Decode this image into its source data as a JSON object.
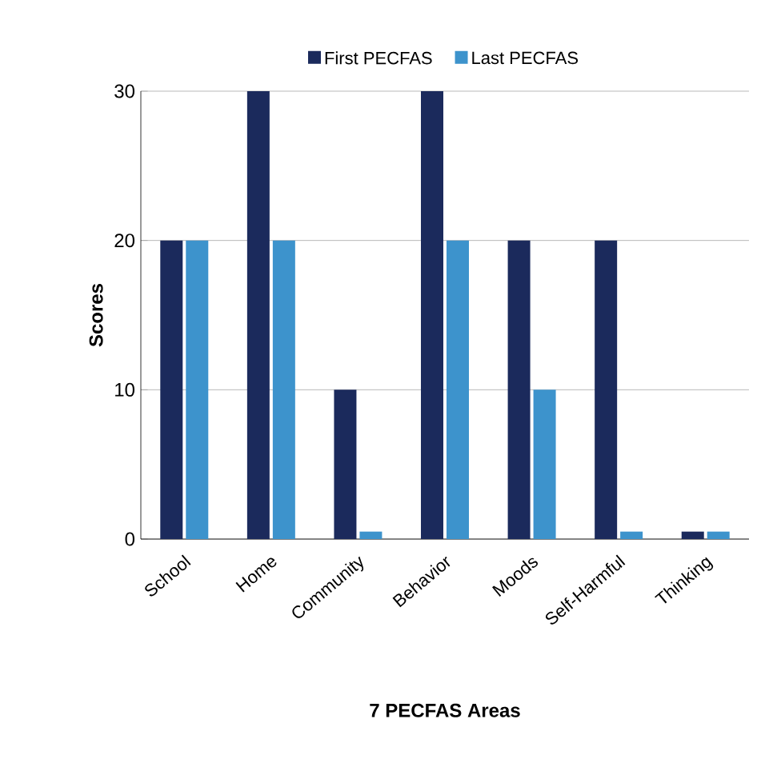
{
  "chart_data": {
    "type": "bar",
    "xlabel": "7 PECFAS Areas",
    "ylabel": "Scores",
    "categories": [
      "School",
      "Home",
      "Community",
      "Behavior",
      "Moods",
      "Self-Harmful",
      "Thinking"
    ],
    "series": [
      {
        "name": "First PECFAS",
        "color": "#1b2a5c",
        "values": [
          20,
          30,
          10,
          30,
          20,
          20,
          0.5
        ]
      },
      {
        "name": "Last PECFAS",
        "color": "#3d93cc",
        "values": [
          20,
          20,
          0.5,
          20,
          10,
          0.5,
          0.5
        ]
      }
    ],
    "ylim": [
      0,
      30
    ],
    "yticks": [
      0,
      10,
      20,
      30
    ],
    "grid": "y",
    "legend": "top"
  }
}
